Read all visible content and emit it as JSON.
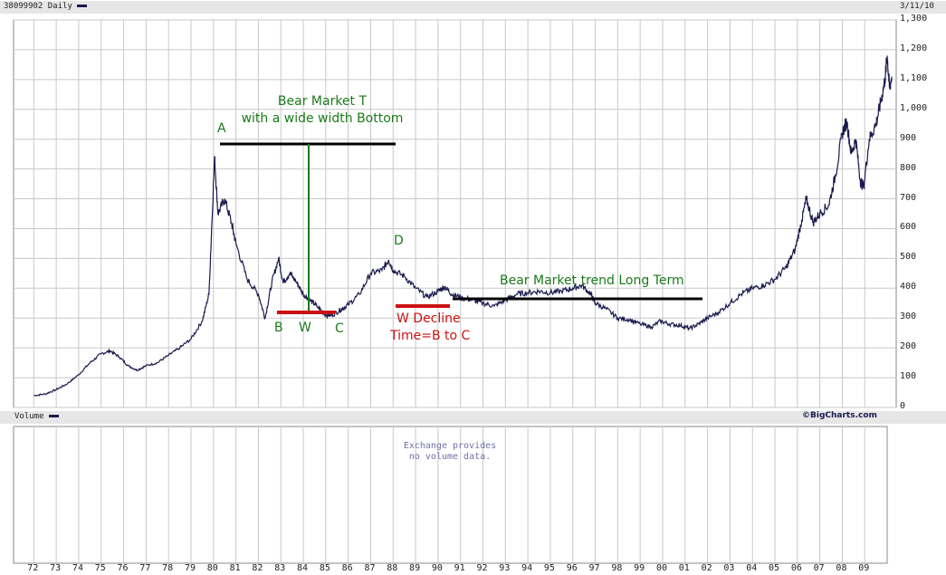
{
  "header": {
    "symbol_label": "38099902 Daily",
    "date_label": "3/11/10"
  },
  "volume_panel": {
    "label": "Volume",
    "brand": "©BigCharts.com",
    "notice_line1": "Exchange provides",
    "notice_line2": "no volume data."
  },
  "colors": {
    "price_line": "#1a1a4e",
    "annotation_green": "#1a7a1a",
    "annotation_red": "#cc1111",
    "annotation_black": "#000000",
    "grid": "#c8c8c8",
    "panel_bar": "#e6e6e6"
  },
  "annotations": {
    "title_line1": "Bear Market T",
    "title_line2": "with a wide width Bottom",
    "point_a": "A",
    "point_b": "B",
    "point_w": "W",
    "point_c": "C",
    "point_d": "D",
    "w_decline_line1": "W Decline",
    "w_decline_line2": "Time=B to C",
    "long_term": "Bear Market trend Long Term"
  },
  "chart_data": {
    "type": "line",
    "series": [
      {
        "values": [
          [
            1972.0,
            40
          ],
          [
            1972.5,
            45
          ],
          [
            1973.0,
            60
          ],
          [
            1973.5,
            80
          ],
          [
            1974.0,
            110
          ],
          [
            1974.5,
            150
          ],
          [
            1975.0,
            180
          ],
          [
            1975.4,
            190
          ],
          [
            1975.8,
            170
          ],
          [
            1976.2,
            140
          ],
          [
            1976.6,
            125
          ],
          [
            1977.0,
            140
          ],
          [
            1977.5,
            150
          ],
          [
            1978.0,
            175
          ],
          [
            1978.5,
            200
          ],
          [
            1979.0,
            230
          ],
          [
            1979.5,
            290
          ],
          [
            1979.8,
            380
          ],
          [
            1980.05,
            840
          ],
          [
            1980.2,
            650
          ],
          [
            1980.5,
            700
          ],
          [
            1980.8,
            620
          ],
          [
            1981.0,
            550
          ],
          [
            1981.5,
            430
          ],
          [
            1982.0,
            380
          ],
          [
            1982.3,
            300
          ],
          [
            1982.6,
            420
          ],
          [
            1982.9,
            500
          ],
          [
            1983.1,
            420
          ],
          [
            1983.4,
            450
          ],
          [
            1983.7,
            420
          ],
          [
            1984.0,
            380
          ],
          [
            1984.3,
            360
          ],
          [
            1984.6,
            340
          ],
          [
            1985.0,
            310
          ],
          [
            1985.3,
            310
          ],
          [
            1985.7,
            330
          ],
          [
            1986.0,
            345
          ],
          [
            1986.5,
            380
          ],
          [
            1987.0,
            450
          ],
          [
            1987.5,
            460
          ],
          [
            1987.8,
            495
          ],
          [
            1988.0,
            460
          ],
          [
            1988.5,
            440
          ],
          [
            1989.0,
            400
          ],
          [
            1989.5,
            370
          ],
          [
            1990.0,
            390
          ],
          [
            1990.3,
            405
          ],
          [
            1990.6,
            380
          ],
          [
            1991.0,
            370
          ],
          [
            1991.5,
            360
          ],
          [
            1992.0,
            350
          ],
          [
            1992.5,
            340
          ],
          [
            1993.0,
            360
          ],
          [
            1993.5,
            380
          ],
          [
            1994.0,
            385
          ],
          [
            1994.5,
            390
          ],
          [
            1995.0,
            385
          ],
          [
            1995.5,
            390
          ],
          [
            1996.0,
            400
          ],
          [
            1996.4,
            410
          ],
          [
            1996.8,
            380
          ],
          [
            1997.0,
            350
          ],
          [
            1997.5,
            330
          ],
          [
            1998.0,
            300
          ],
          [
            1998.5,
            295
          ],
          [
            1999.0,
            280
          ],
          [
            1999.5,
            270
          ],
          [
            1999.9,
            290
          ],
          [
            2000.3,
            280
          ],
          [
            2000.8,
            275
          ],
          [
            2001.2,
            265
          ],
          [
            2001.6,
            280
          ],
          [
            2002.0,
            300
          ],
          [
            2002.5,
            320
          ],
          [
            2003.0,
            350
          ],
          [
            2003.5,
            380
          ],
          [
            2004.0,
            400
          ],
          [
            2004.5,
            410
          ],
          [
            2005.0,
            430
          ],
          [
            2005.5,
            470
          ],
          [
            2005.9,
            530
          ],
          [
            2006.2,
            630
          ],
          [
            2006.4,
            700
          ],
          [
            2006.7,
            620
          ],
          [
            2007.0,
            650
          ],
          [
            2007.4,
            680
          ],
          [
            2007.7,
            780
          ],
          [
            2008.0,
            920
          ],
          [
            2008.2,
            960
          ],
          [
            2008.4,
            850
          ],
          [
            2008.6,
            900
          ],
          [
            2008.8,
            760
          ],
          [
            2008.95,
            740
          ],
          [
            2009.2,
            900
          ],
          [
            2009.5,
            950
          ],
          [
            2009.7,
            1020
          ],
          [
            2009.9,
            1100
          ],
          [
            2010.0,
            1180
          ],
          [
            2010.1,
            1070
          ],
          [
            2010.2,
            1110
          ]
        ]
      }
    ],
    "x_ticks": [
      "72",
      "73",
      "74",
      "75",
      "76",
      "77",
      "78",
      "79",
      "80",
      "81",
      "82",
      "83",
      "84",
      "85",
      "86",
      "87",
      "88",
      "89",
      "90",
      "91",
      "92",
      "93",
      "94",
      "95",
      "96",
      "97",
      "98",
      "99",
      "00",
      "01",
      "02",
      "03",
      "04",
      "05",
      "06",
      "07",
      "08",
      "09"
    ],
    "y_ticks": [
      "0",
      "100",
      "200",
      "300",
      "400",
      "500",
      "600",
      "700",
      "800",
      "900",
      "1,000",
      "1,100",
      "1,200",
      "1,300"
    ],
    "xlim": [
      1971.1,
      2010.4
    ],
    "ylim": [
      0,
      1300
    ],
    "grid": true
  }
}
